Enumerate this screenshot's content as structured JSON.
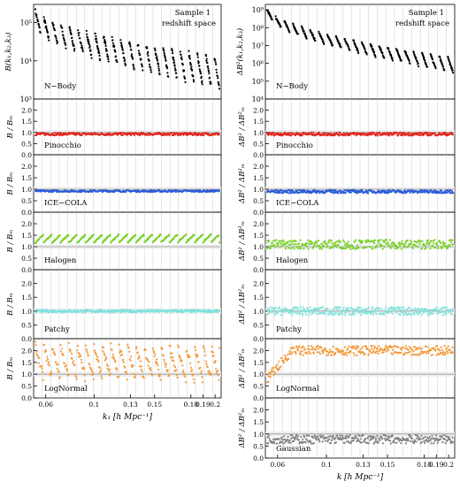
{
  "colors": {
    "nbody": "#000000",
    "pinocchio": "#e0261d",
    "ice_cola": "#2a5bd7",
    "halogen": "#7ad12a",
    "patchy": "#7fe3dd",
    "lognormal": "#f39a3a",
    "gaussian": "#808080",
    "ref_line": "#9a9a9a",
    "grid": "#cccccc"
  },
  "chart_data": [
    {
      "type": "scatter",
      "panel": "left-column",
      "annotation_line1": "Sample 1",
      "annotation_line2": "redshift space",
      "xlabel": "k₁ [h Mpc⁻¹]",
      "xlim": [
        0.05,
        0.205
      ],
      "x_ticks": [
        "0.06",
        "0.1",
        "0.13",
        "0.15",
        "0.18",
        "0.19",
        "0.2"
      ],
      "x_tick_positions": [
        0.06,
        0.1,
        0.13,
        0.15,
        0.18,
        0.19,
        0.2
      ],
      "top_panel": {
        "series_name": "N−Body",
        "ylabel": "B(k₁,k₂,k₃)",
        "yscale": "log",
        "ylim": [
          1000,
          300000
        ],
        "y_ticks": [
          "10³",
          "10⁴",
          "10⁵"
        ],
        "y_tick_values": [
          1000,
          10000,
          100000
        ],
        "triangle_groups": 22,
        "start_value": 200000,
        "end_value": 2000
      },
      "ratio_panels": {
        "ylabel": "B / Bₘ",
        "ylim": [
          0,
          2.5
        ],
        "y_ticks": [
          "0.0",
          "0.5",
          "1.0",
          "1.5",
          "2.0"
        ],
        "y_tick_values": [
          0.0,
          0.5,
          1.0,
          1.5,
          2.0
        ],
        "reference": 1.0,
        "series": [
          {
            "name": "Pinocchio",
            "mean": 0.93,
            "spread": 0.06
          },
          {
            "name": "ICE−COLA",
            "mean": 0.92,
            "spread": 0.04
          },
          {
            "name": "Halogen",
            "mean": 1.33,
            "spread": 0.12
          },
          {
            "name": "Patchy",
            "mean": 1.0,
            "spread": 0.05
          },
          {
            "name": "LogNormal",
            "mean": 1.75,
            "spread": 0.45
          }
        ]
      }
    },
    {
      "type": "scatter",
      "panel": "right-column",
      "annotation_line1": "Sample 1",
      "annotation_line2": "redshift space",
      "xlabel": "k [h Mpc⁻¹]",
      "xlim": [
        0.05,
        0.205
      ],
      "x_ticks": [
        "0.06",
        "0.1",
        "0.13",
        "0.15",
        "0.18",
        "0.19",
        "0.2"
      ],
      "x_tick_positions": [
        0.06,
        0.1,
        0.13,
        0.15,
        0.18,
        0.19,
        0.2
      ],
      "top_panel": {
        "series_name": "N−Body",
        "ylabel": "ΔB²(k₁,k₂,k₃)",
        "yscale": "log",
        "ylim": [
          10000,
          2000000000
        ],
        "y_ticks": [
          "10⁴",
          "10⁵",
          "10⁶",
          "10⁷",
          "10⁸",
          "10⁹"
        ],
        "y_tick_values": [
          10000,
          100000,
          1000000,
          10000000,
          100000000,
          1000000000
        ],
        "triangle_groups": 22,
        "start_value": 1000000000,
        "end_value": 20000
      },
      "ratio_panels": {
        "ylabel": "ΔB² / ΔB²ₘ",
        "ylim": [
          0,
          2.5
        ],
        "y_ticks": [
          "0.0",
          "0.5",
          "1.0",
          "1.5",
          "2.0"
        ],
        "y_tick_values": [
          0.0,
          0.5,
          1.0,
          1.5,
          2.0
        ],
        "reference": 1.0,
        "series": [
          {
            "name": "Pinocchio",
            "mean": 0.93,
            "spread": 0.07
          },
          {
            "name": "ICE−COLA",
            "mean": 0.9,
            "spread": 0.07
          },
          {
            "name": "Halogen",
            "mean": 1.1,
            "spread": 0.2
          },
          {
            "name": "Patchy",
            "mean": 1.0,
            "spread": 0.15
          },
          {
            "name": "LogNormal",
            "mean": 2.0,
            "spread": 0.2
          },
          {
            "name": "Gaussian",
            "mean": 0.78,
            "spread": 0.18
          }
        ]
      }
    }
  ]
}
